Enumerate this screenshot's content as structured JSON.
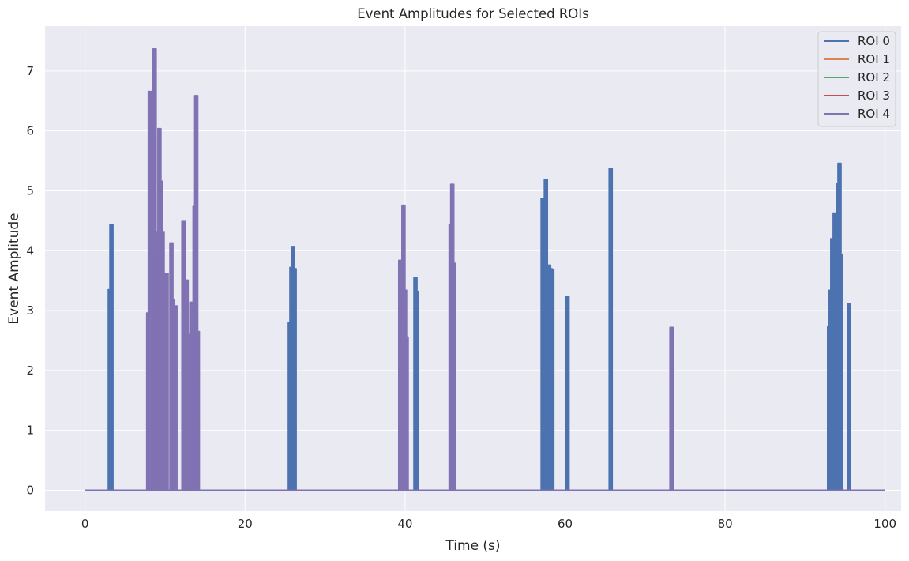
{
  "chart_data": {
    "type": "line",
    "title": "Event Amplitudes for Selected ROIs",
    "xlabel": "Time (s)",
    "ylabel": "Event Amplitude",
    "xlim": [
      -5,
      102
    ],
    "ylim": [
      -0.35,
      7.75
    ],
    "xticks": [
      0,
      20,
      40,
      60,
      80,
      100
    ],
    "yticks": [
      0,
      1,
      2,
      3,
      4,
      5,
      6,
      7
    ],
    "grid": true,
    "legend_position": "top-right",
    "series": [
      {
        "name": "ROI 0",
        "color": "#4c72b0",
        "spikes": [
          [
            3.1,
            3.35
          ],
          [
            3.3,
            4.43
          ],
          [
            25.6,
            2.8
          ],
          [
            25.8,
            3.72
          ],
          [
            26.0,
            4.07
          ],
          [
            26.2,
            3.7
          ],
          [
            41.3,
            3.55
          ],
          [
            41.5,
            3.32
          ],
          [
            57.2,
            4.87
          ],
          [
            57.4,
            3.95
          ],
          [
            57.6,
            5.19
          ],
          [
            57.8,
            2.92
          ],
          [
            58.0,
            3.76
          ],
          [
            58.2,
            3.7
          ],
          [
            58.4,
            3.68
          ],
          [
            60.3,
            3.23
          ],
          [
            65.7,
            5.37
          ],
          [
            93.0,
            2.73
          ],
          [
            93.2,
            3.34
          ],
          [
            93.4,
            4.2
          ],
          [
            93.7,
            4.63
          ],
          [
            93.9,
            4.27
          ],
          [
            94.1,
            5.12
          ],
          [
            94.3,
            5.46
          ],
          [
            94.5,
            3.93
          ],
          [
            95.5,
            3.12
          ]
        ]
      },
      {
        "name": "ROI 1",
        "color": "#dd8452",
        "spikes": []
      },
      {
        "name": "ROI 2",
        "color": "#55a868",
        "spikes": []
      },
      {
        "name": "ROI 3",
        "color": "#c44e52",
        "spikes": []
      },
      {
        "name": "ROI 4",
        "color": "#8172b3",
        "spikes": [
          [
            7.9,
            2.96
          ],
          [
            8.1,
            6.66
          ],
          [
            8.3,
            3.9
          ],
          [
            8.5,
            4.52
          ],
          [
            8.7,
            7.37
          ],
          [
            8.9,
            3.95
          ],
          [
            9.1,
            4.32
          ],
          [
            9.3,
            6.04
          ],
          [
            9.5,
            5.16
          ],
          [
            9.7,
            4.32
          ],
          [
            10.2,
            3.62
          ],
          [
            10.8,
            4.13
          ],
          [
            11.0,
            3.18
          ],
          [
            11.3,
            3.08
          ],
          [
            12.3,
            4.49
          ],
          [
            12.7,
            3.51
          ],
          [
            13.1,
            2.6
          ],
          [
            13.3,
            3.14
          ],
          [
            13.7,
            4.74
          ],
          [
            13.9,
            6.59
          ],
          [
            14.1,
            2.65
          ],
          [
            39.4,
            3.84
          ],
          [
            39.6,
            2.86
          ],
          [
            39.8,
            4.76
          ],
          [
            40.0,
            3.34
          ],
          [
            40.2,
            2.56
          ],
          [
            45.7,
            4.44
          ],
          [
            45.9,
            5.11
          ],
          [
            46.1,
            3.79
          ],
          [
            73.3,
            2.72
          ]
        ]
      }
    ]
  }
}
